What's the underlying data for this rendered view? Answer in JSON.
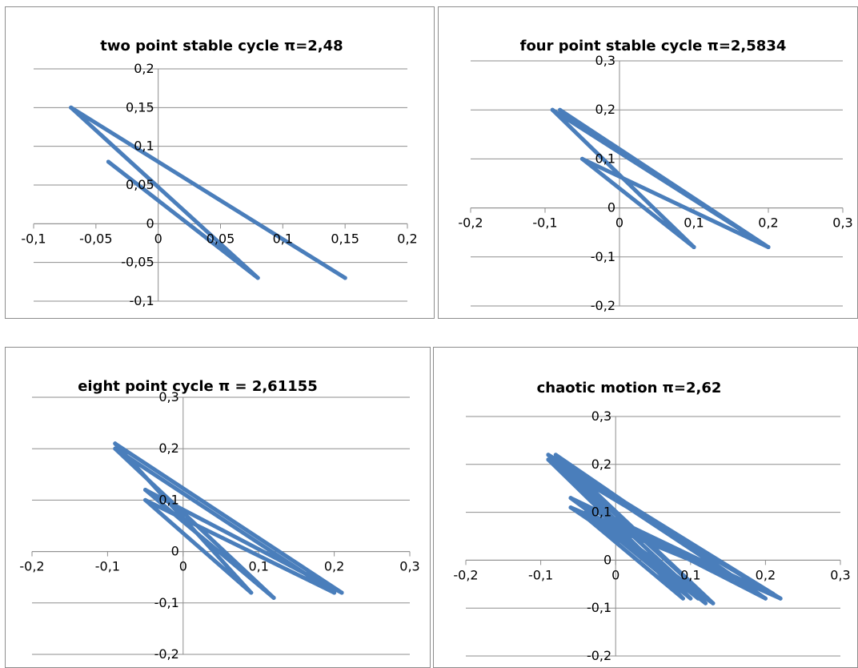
{
  "chart_data": [
    {
      "type": "line",
      "title": "two point stable cycle π=2,48",
      "xlabel": "",
      "ylabel": "",
      "xlim": [
        -0.1,
        0.2
      ],
      "ylim": [
        -0.1,
        0.2
      ],
      "xticks": [
        -0.1,
        -0.05,
        0,
        0.05,
        0.1,
        0.15,
        0.2
      ],
      "yticks": [
        -0.1,
        -0.05,
        0,
        0.05,
        0.1,
        0.15,
        0.2
      ],
      "xtick_labels": [
        "-0,1",
        "-0,05",
        "0",
        "0,05",
        "0,1",
        "0,15",
        "0,2"
      ],
      "ytick_labels": [
        "-0,1",
        "-0,05",
        "0",
        "0,05",
        "0,1",
        "0,15",
        "0,2"
      ],
      "grid": "horizontal",
      "series": [
        {
          "color": "#4a7ebb",
          "x": [
            -0.04,
            0.08,
            -0.07,
            0.15,
            -0.07,
            0.15,
            -0.07,
            0.15
          ],
          "y": [
            0.08,
            -0.07,
            0.15,
            -0.07,
            0.15,
            -0.07,
            0.15,
            -0.07
          ]
        }
      ]
    },
    {
      "type": "line",
      "title": "four point stable cycle π=2,5834",
      "xlabel": "",
      "ylabel": "",
      "xlim": [
        -0.2,
        0.3
      ],
      "ylim": [
        -0.2,
        0.3
      ],
      "xticks": [
        -0.2,
        -0.1,
        0,
        0.1,
        0.2,
        0.3
      ],
      "yticks": [
        -0.2,
        -0.1,
        0,
        0.1,
        0.2,
        0.3
      ],
      "xtick_labels": [
        "-0,2",
        "-0,1",
        "0",
        "0,1",
        "0,2",
        "0,3"
      ],
      "ytick_labels": [
        "-0,2",
        "-0,1",
        "0",
        "0,1",
        "0,2",
        "0,3"
      ],
      "grid": "horizontal",
      "series": [
        {
          "color": "#4a7ebb",
          "x": [
            -0.08,
            0.2,
            -0.05,
            0.1,
            -0.09,
            0.2,
            -0.05,
            0.1,
            -0.09,
            0.2,
            -0.05,
            0.1
          ],
          "y": [
            0.2,
            -0.08,
            0.1,
            -0.08,
            0.2,
            -0.08,
            0.1,
            -0.08,
            0.2,
            -0.08,
            0.1,
            -0.08
          ]
        }
      ]
    },
    {
      "type": "line",
      "title": "eight point cycle π = 2,61155",
      "xlabel": "",
      "ylabel": "",
      "xlim": [
        -0.2,
        0.3
      ],
      "ylim": [
        -0.2,
        0.3
      ],
      "xticks": [
        -0.2,
        -0.1,
        0,
        0.1,
        0.2,
        0.3
      ],
      "yticks": [
        -0.2,
        -0.1,
        0,
        0.1,
        0.2,
        0.3
      ],
      "xtick_labels": [
        "-0,2",
        "-0,1",
        "0",
        "0,1",
        "0,2",
        "0,3"
      ],
      "ytick_labels": [
        "-0,2",
        "-0,1",
        "0",
        "0,1",
        "0,2",
        "0,3"
      ],
      "grid": "horizontal",
      "series": [
        {
          "color": "#4a7ebb",
          "x": [
            -0.09,
            0.21,
            -0.05,
            0.12,
            -0.09,
            0.2,
            -0.05,
            0.09,
            -0.09,
            0.21,
            -0.05,
            0.12,
            -0.09,
            0.2,
            -0.05,
            0.09
          ],
          "y": [
            0.21,
            -0.08,
            0.12,
            -0.09,
            0.2,
            -0.08,
            0.1,
            -0.08,
            0.21,
            -0.08,
            0.12,
            -0.09,
            0.2,
            -0.08,
            0.1,
            -0.08
          ]
        }
      ]
    },
    {
      "type": "line",
      "title": "chaotic motion π=2,62",
      "xlabel": "",
      "ylabel": "",
      "xlim": [
        -0.2,
        0.3
      ],
      "ylim": [
        -0.2,
        0.3
      ],
      "xticks": [
        -0.2,
        -0.1,
        0,
        0.1,
        0.2,
        0.3
      ],
      "yticks": [
        -0.2,
        -0.1,
        0,
        0.1,
        0.2,
        0.3
      ],
      "xtick_labels": [
        "-0,2",
        "-0,1",
        "0",
        "0,1",
        "0,2",
        "0,3"
      ],
      "ytick_labels": [
        "-0,2",
        "-0,1",
        "0",
        "0,1",
        "0,2",
        "0,3"
      ],
      "grid": "horizontal",
      "series": [
        {
          "color": "#4a7ebb",
          "x": [
            -0.09,
            0.22,
            -0.06,
            0.13,
            -0.08,
            0.21,
            -0.04,
            0.09,
            -0.09,
            0.2,
            -0.05,
            0.12,
            -0.08,
            0.22,
            -0.04,
            0.1,
            -0.09,
            0.21,
            -0.06,
            0.13,
            -0.08,
            0.2,
            -0.05,
            0.11
          ],
          "y": [
            0.22,
            -0.08,
            0.13,
            -0.09,
            0.21,
            -0.07,
            0.09,
            -0.08,
            0.22,
            -0.08,
            0.12,
            -0.09,
            0.2,
            -0.08,
            0.1,
            -0.08,
            0.21,
            -0.07,
            0.11,
            -0.09,
            0.22,
            -0.08,
            0.12,
            -0.08
          ]
        }
      ]
    }
  ]
}
